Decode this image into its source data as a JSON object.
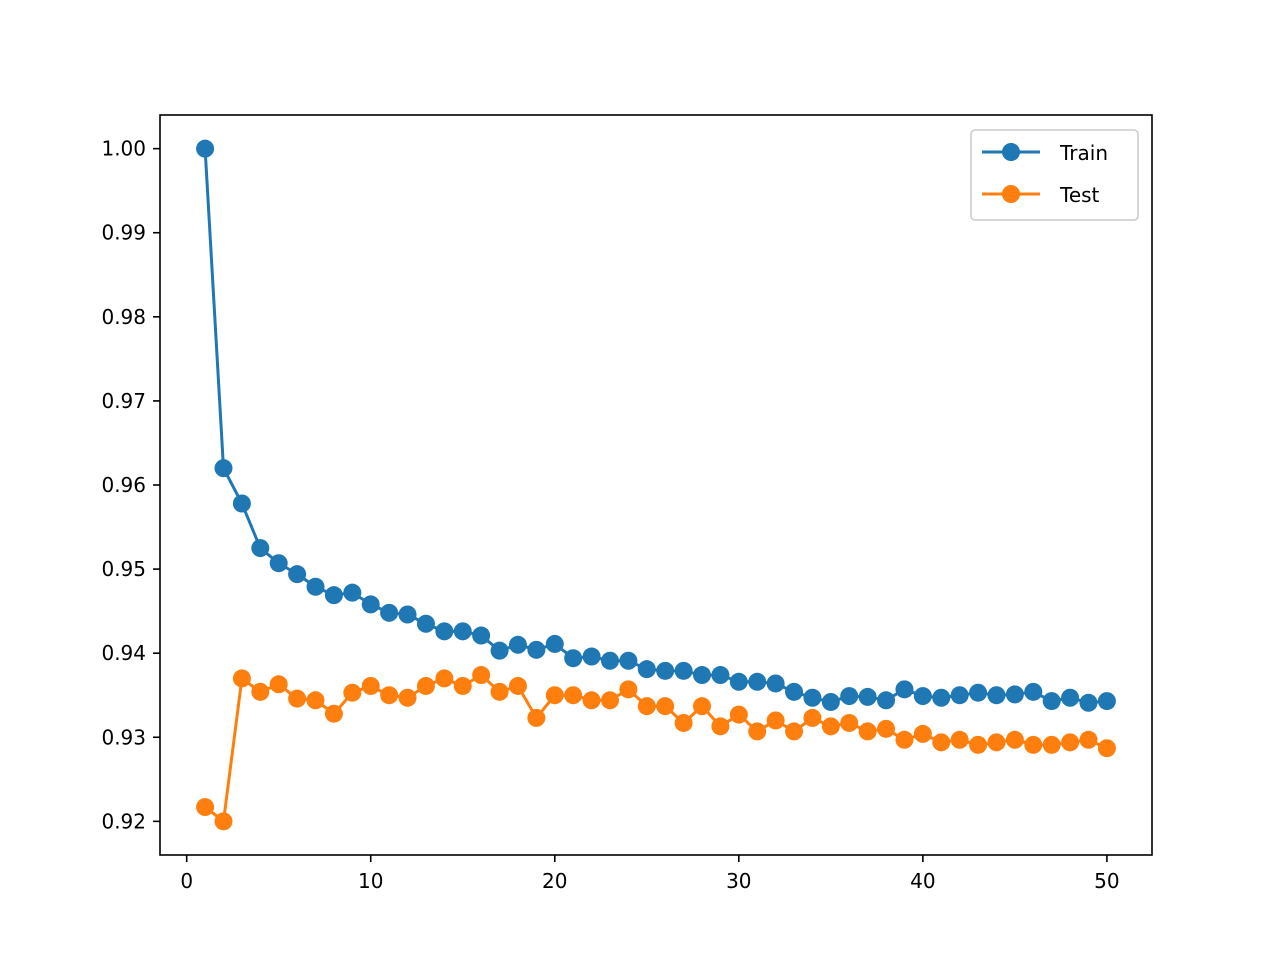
{
  "chart_data": {
    "type": "line",
    "title": "",
    "xlabel": "",
    "ylabel": "",
    "xlim": [
      -1.45,
      52.45
    ],
    "ylim": [
      0.916,
      1.004
    ],
    "xticks": [
      0,
      10,
      20,
      30,
      40,
      50
    ],
    "xtick_labels": [
      "0",
      "10",
      "20",
      "30",
      "40",
      "50"
    ],
    "yticks": [
      0.92,
      0.93,
      0.94,
      0.95,
      0.96,
      0.97,
      0.98,
      0.99,
      1.0
    ],
    "ytick_labels": [
      "0.92",
      "0.93",
      "0.94",
      "0.95",
      "0.96",
      "0.97",
      "0.98",
      "0.99",
      "1.00"
    ],
    "grid": false,
    "legend_position": "top-right",
    "x": [
      1,
      2,
      3,
      4,
      5,
      6,
      7,
      8,
      9,
      10,
      11,
      12,
      13,
      14,
      15,
      16,
      17,
      18,
      19,
      20,
      21,
      22,
      23,
      24,
      25,
      26,
      27,
      28,
      29,
      30,
      31,
      32,
      33,
      34,
      35,
      36,
      37,
      38,
      39,
      40,
      41,
      42,
      43,
      44,
      45,
      46,
      47,
      48,
      49,
      50
    ],
    "series": [
      {
        "name": "Train",
        "color": "#1f77b4",
        "marker": "circle",
        "values": [
          1.0,
          0.962,
          0.9578,
          0.9525,
          0.9507,
          0.9494,
          0.9479,
          0.9469,
          0.9472,
          0.9458,
          0.9448,
          0.9446,
          0.9435,
          0.9426,
          0.9426,
          0.9421,
          0.9403,
          0.941,
          0.9404,
          0.9411,
          0.9394,
          0.9396,
          0.9391,
          0.9391,
          0.9381,
          0.9379,
          0.9379,
          0.9374,
          0.9374,
          0.9366,
          0.9366,
          0.9364,
          0.9354,
          0.9347,
          0.9342,
          0.9349,
          0.9348,
          0.9344,
          0.9357,
          0.9349,
          0.9347,
          0.935,
          0.9353,
          0.935,
          0.9351,
          0.9354,
          0.9343,
          0.9347,
          0.9341,
          0.9343
        ]
      },
      {
        "name": "Test",
        "color": "#ff7f0e",
        "marker": "circle",
        "values": [
          0.9217,
          0.92,
          0.937,
          0.9354,
          0.9363,
          0.9346,
          0.9344,
          0.9328,
          0.9353,
          0.9361,
          0.935,
          0.9347,
          0.9361,
          0.937,
          0.9361,
          0.9374,
          0.9354,
          0.9361,
          0.9323,
          0.935,
          0.935,
          0.9344,
          0.9344,
          0.9357,
          0.9337,
          0.9337,
          0.9317,
          0.9337,
          0.9313,
          0.9327,
          0.9307,
          0.932,
          0.9307,
          0.9323,
          0.9313,
          0.9317,
          0.9307,
          0.931,
          0.9297,
          0.9304,
          0.9294,
          0.9297,
          0.9291,
          0.9294,
          0.9297,
          0.9291,
          0.9291,
          0.9294,
          0.9297,
          0.9287
        ]
      }
    ]
  }
}
